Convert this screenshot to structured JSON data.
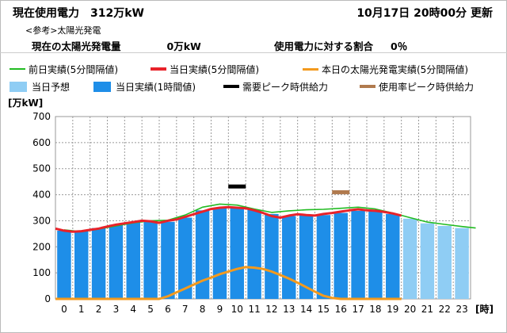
{
  "header": {
    "title": "現在使用電力",
    "current_usage": "312万kW",
    "timestamp": "10月17日 20時00分 更新",
    "reference_note": "<参考>太陽光発電",
    "solar_label": "現在の太陽光発電量",
    "solar_value": "0万kW",
    "ratio_label": "使用電力に対する割合",
    "ratio_value": "0％"
  },
  "legend": [
    {
      "label": "前日実績(5分間隔値)",
      "color": "#22bb22",
      "kind": "line"
    },
    {
      "label": "当日実績(5分間隔値)",
      "color": "#e8222a",
      "kind": "line"
    },
    {
      "label": "本日の太陽光発電実績(5分間隔値)",
      "color": "#f39a1e",
      "kind": "line"
    },
    {
      "label": "当日予想",
      "color": "#8fcdf4",
      "kind": "box"
    },
    {
      "label": "当日実績(1時間値)",
      "color": "#1e8ee8",
      "kind": "box"
    },
    {
      "label": "需要ピーク時供給力",
      "color": "#000000",
      "kind": "line"
    },
    {
      "label": "使用率ピーク時供給力",
      "color": "#b07a4e",
      "kind": "line"
    }
  ],
  "chart_data": {
    "type": "bar",
    "ylabel": "[万kW]",
    "xlabel": "[時]",
    "ylim": [
      0,
      700
    ],
    "yticks": [
      0,
      100,
      200,
      300,
      400,
      500,
      600,
      700
    ],
    "categories": [
      "0",
      "1",
      "2",
      "3",
      "4",
      "5",
      "6",
      "7",
      "8",
      "9",
      "10",
      "11",
      "12",
      "13",
      "14",
      "15",
      "16",
      "17",
      "18",
      "19",
      "20",
      "21",
      "22",
      "23"
    ],
    "grid": true,
    "series": [
      {
        "name": "当日実績(1時間値)",
        "kind": "bar",
        "color": "#1e8ee8",
        "values": [
          262,
          262,
          272,
          285,
          295,
          298,
          296,
          312,
          340,
          348,
          350,
          342,
          326,
          318,
          320,
          322,
          330,
          338,
          336,
          326,
          null,
          null,
          null,
          null
        ]
      },
      {
        "name": "当日予想",
        "kind": "bar",
        "color": "#8fcdf4",
        "values": [
          null,
          null,
          null,
          null,
          null,
          null,
          null,
          null,
          null,
          null,
          null,
          null,
          null,
          null,
          null,
          null,
          null,
          null,
          null,
          null,
          308,
          290,
          280,
          272
        ]
      },
      {
        "name": "前日実績(5分間隔値)",
        "kind": "line",
        "color": "#22bb22",
        "x": [
          0,
          1,
          2,
          3,
          4,
          5,
          6,
          7,
          8,
          9,
          10,
          11,
          12,
          13,
          14,
          15,
          16,
          17,
          18,
          19,
          20,
          21,
          22,
          23,
          23.8
        ],
        "values": [
          265,
          258,
          268,
          280,
          292,
          300,
          302,
          322,
          352,
          364,
          360,
          345,
          332,
          338,
          342,
          344,
          348,
          352,
          345,
          330,
          312,
          295,
          286,
          278,
          272
        ]
      },
      {
        "name": "当日実績(5分間隔値)",
        "kind": "line",
        "color": "#e8222a",
        "x": [
          -0.5,
          0,
          0.5,
          1,
          1.5,
          2,
          2.5,
          3,
          3.5,
          4,
          4.5,
          5,
          5.5,
          6,
          6.5,
          7,
          7.5,
          8,
          8.5,
          9,
          9.5,
          10,
          10.5,
          11,
          11.5,
          12,
          12.5,
          13,
          13.5,
          14,
          14.5,
          15,
          15.5,
          16,
          16.5,
          17,
          17.5,
          18,
          18.5,
          19,
          19.5
        ],
        "values": [
          270,
          262,
          258,
          260,
          265,
          270,
          278,
          285,
          290,
          295,
          300,
          298,
          292,
          300,
          305,
          315,
          325,
          335,
          345,
          350,
          352,
          350,
          348,
          340,
          330,
          318,
          312,
          320,
          325,
          322,
          320,
          326,
          330,
          335,
          340,
          344,
          340,
          338,
          334,
          328,
          320
        ]
      },
      {
        "name": "本日の太陽光発電実績(5分間隔値)",
        "kind": "line",
        "color": "#f39a1e",
        "x": [
          -0.5,
          5.5,
          6,
          6.5,
          7,
          7.5,
          8,
          8.5,
          9,
          9.5,
          10,
          10.5,
          11,
          11.5,
          12,
          12.5,
          13,
          13.5,
          14,
          14.5,
          15,
          15.5,
          16,
          19.5
        ],
        "values": [
          0,
          0,
          10,
          25,
          40,
          55,
          70,
          82,
          95,
          105,
          115,
          122,
          120,
          115,
          105,
          92,
          78,
          62,
          45,
          28,
          12,
          4,
          0,
          0
        ]
      },
      {
        "name": "需要ピーク時供給力",
        "kind": "marker",
        "color": "#000000",
        "x": 10,
        "value": 430
      },
      {
        "name": "使用率ピーク時供給力",
        "kind": "marker",
        "color": "#b07a4e",
        "x": 16,
        "value": 408
      }
    ]
  }
}
